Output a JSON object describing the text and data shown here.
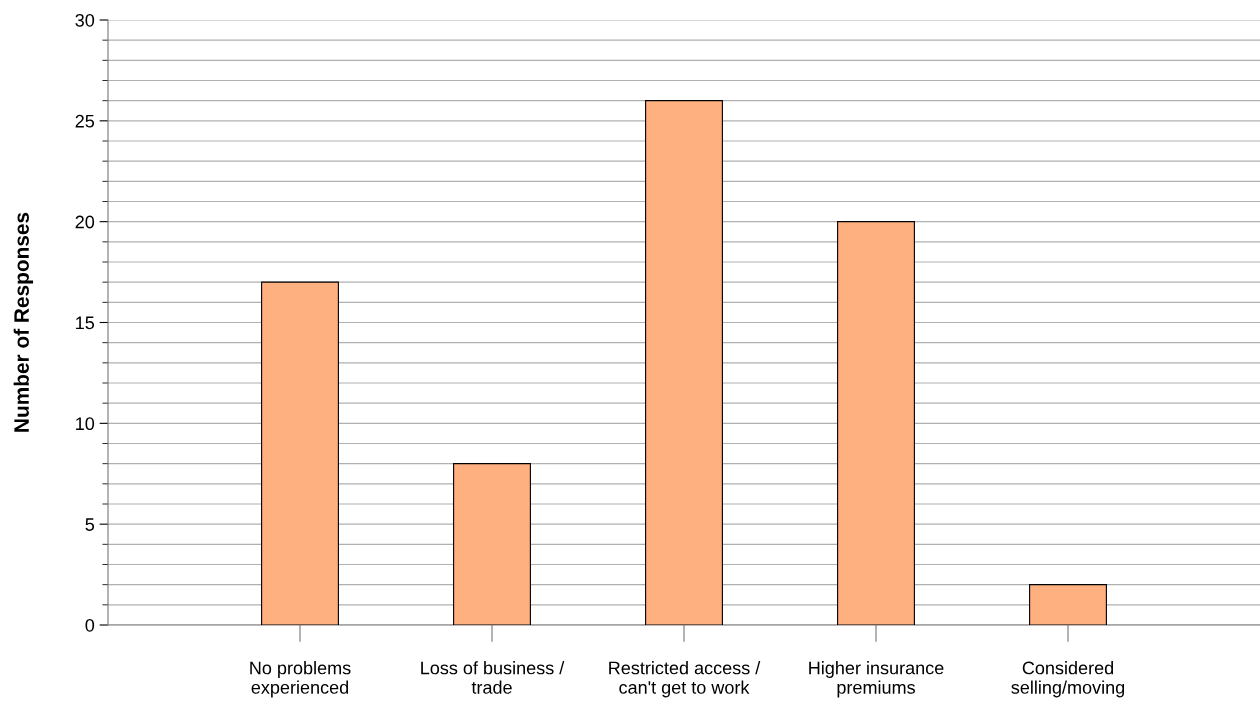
{
  "chart_data": {
    "type": "bar",
    "ylabel": "Number of Responses",
    "categories": [
      "No problems\nexperienced",
      "Loss of business /\ntrade",
      "Restricted access /\ncan't get to work",
      "Higher insurance\npremiums",
      "Considered\nselling/moving"
    ],
    "values": [
      17,
      8,
      26,
      20,
      2
    ],
    "color": "#ffb080",
    "ylim": [
      0,
      30
    ],
    "yticks": [
      0,
      5,
      10,
      15,
      20,
      25,
      30
    ],
    "grid": "y",
    "legend": false
  }
}
